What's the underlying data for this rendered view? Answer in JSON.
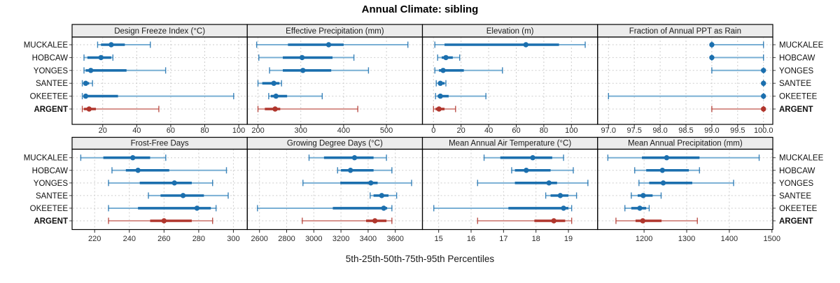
{
  "title": "Annual Climate: sibling",
  "caption": "5th-25th-50th-75th-95th Percentiles",
  "sites": [
    "MUCKALEE",
    "HOBCAW",
    "YONGES",
    "SANTEE",
    "OKEETEE",
    "ARGENT"
  ],
  "highlight_site": "ARGENT",
  "colors": {
    "series_main": "#1b6fae",
    "series_light": "#79afd4",
    "highlight_main": "#b0352c",
    "highlight_light": "#d7948e",
    "header_bg": "#ececec",
    "panel_border": "#000000",
    "grid": "#cdcdcd",
    "tick_text": "#2b2b2b"
  },
  "chart_data": {
    "type": "percentile-dotplot",
    "percentiles": [
      "5th",
      "25th",
      "50th",
      "75th",
      "95th"
    ],
    "grid": "dashed",
    "rows": 2,
    "cols": 4,
    "panels": [
      {
        "title": "Design Freeze Index (°C)",
        "band": 0,
        "range": [
          2,
          105
        ],
        "ticks": [
          20,
          40,
          60,
          80,
          100
        ],
        "tick_labels": [
          "20",
          "40",
          "60",
          "80",
          "100"
        ],
        "series": {
          "MUCKALEE": [
            17,
            19,
            25,
            33,
            48
          ],
          "HOBCAW": [
            9,
            11,
            19,
            25,
            26
          ],
          "YONGES": [
            9,
            10,
            13,
            34,
            57
          ],
          "SANTEE": [
            8,
            9,
            10,
            12,
            14
          ],
          "OKEETEE": [
            8,
            9,
            10,
            29,
            97
          ],
          "ARGENT": [
            8,
            9,
            12,
            16,
            53
          ]
        }
      },
      {
        "title": "Effective Precipitation (mm)",
        "band": 0,
        "range": [
          175,
          584
        ],
        "ticks": [
          200,
          300,
          400,
          500
        ],
        "tick_labels": [
          "200",
          "300",
          "400",
          "500"
        ],
        "series": {
          "MUCKALEE": [
            197,
            270,
            365,
            400,
            550
          ],
          "HOBCAW": [
            202,
            258,
            303,
            374,
            424
          ],
          "YONGES": [
            227,
            258,
            305,
            371,
            458
          ],
          "SANTEE": [
            200,
            210,
            237,
            250,
            255
          ],
          "OKEETEE": [
            225,
            230,
            242,
            268,
            350
          ],
          "ARGENT": [
            200,
            216,
            240,
            252,
            433
          ]
        }
      },
      {
        "title": "Elevation (m)",
        "band": 0,
        "range": [
          -8,
          119
        ],
        "ticks": [
          0,
          20,
          40,
          60,
          80,
          100
        ],
        "tick_labels": [
          "0",
          "20",
          "40",
          "60",
          "80",
          "100"
        ],
        "series": {
          "MUCKALEE": [
            1,
            8,
            67,
            91,
            110
          ],
          "HOBCAW": [
            3,
            6,
            9,
            14,
            19
          ],
          "YONGES": [
            1,
            4,
            7,
            22,
            50
          ],
          "SANTEE": [
            2,
            3.5,
            5,
            8,
            9
          ],
          "OKEETEE": [
            1.5,
            3,
            5,
            11,
            38
          ],
          "ARGENT": [
            0,
            1.5,
            4,
            8,
            16
          ]
        }
      },
      {
        "title": "Fraction of Annual PPT as Rain",
        "band": 0,
        "range": [
          96.79,
          100.18
        ],
        "ticks": [
          97.0,
          97.5,
          98.0,
          98.5,
          99.0,
          99.5,
          100.0
        ],
        "tick_labels": [
          "97.0",
          "97.5",
          "98.0",
          "98.5",
          "99.0",
          "99.5",
          "100.0"
        ],
        "series": {
          "MUCKALEE": [
            99,
            99,
            99,
            99,
            100
          ],
          "HOBCAW": [
            99,
            99,
            99,
            99,
            100
          ],
          "YONGES": [
            99,
            100,
            100,
            100,
            100
          ],
          "SANTEE": [
            100,
            100,
            100,
            100,
            100
          ],
          "OKEETEE": [
            97,
            100,
            100,
            100,
            100
          ],
          "ARGENT": [
            99,
            100,
            100,
            100,
            100
          ]
        }
      },
      {
        "title": "Frost-Free Days",
        "band": 1,
        "range": [
          207,
          308
        ],
        "ticks": [
          220,
          240,
          260,
          280,
          300
        ],
        "tick_labels": [
          "220",
          "240",
          "260",
          "280",
          "300"
        ],
        "series": {
          "MUCKALEE": [
            212,
            225,
            242,
            252,
            261
          ],
          "HOBCAW": [
            230,
            238,
            245,
            263,
            296
          ],
          "YONGES": [
            228,
            246,
            266,
            276,
            288
          ],
          "SANTEE": [
            251,
            258,
            271,
            283,
            297
          ],
          "OKEETEE": [
            228,
            245,
            279,
            287,
            290
          ],
          "ARGENT": [
            228,
            252,
            260,
            276,
            288
          ]
        }
      },
      {
        "title": "Growing Degree Days (°C)",
        "band": 1,
        "range": [
          2510,
          3800
        ],
        "ticks": [
          2600,
          2800,
          3000,
          3200,
          3400,
          3600
        ],
        "tick_labels": [
          "2600",
          "2800",
          "3000",
          "3200",
          "3400",
          "3600"
        ],
        "series": {
          "MUCKALEE": [
            2965,
            3075,
            3300,
            3440,
            3535
          ],
          "HOBCAW": [
            3175,
            3200,
            3270,
            3440,
            3575
          ],
          "YONGES": [
            2920,
            3195,
            3420,
            3470,
            3720
          ],
          "SANTEE": [
            3415,
            3440,
            3500,
            3550,
            3610
          ],
          "OKEETEE": [
            2585,
            3140,
            3515,
            3540,
            3575
          ],
          "ARGENT": [
            2915,
            3385,
            3450,
            3535,
            3575
          ]
        }
      },
      {
        "title": "Mean Annual Air Temperature (°C)",
        "band": 1,
        "range": [
          14.5,
          19.9
        ],
        "ticks": [
          15,
          16,
          17,
          18,
          19
        ],
        "tick_labels": [
          "15",
          "16",
          "17",
          "18",
          "19"
        ],
        "series": {
          "MUCKALEE": [
            16.4,
            16.9,
            17.9,
            18.5,
            18.85
          ],
          "HOBCAW": [
            17.25,
            17.35,
            17.7,
            18.45,
            19.15
          ],
          "YONGES": [
            16.2,
            17.35,
            18.4,
            18.65,
            19.6
          ],
          "SANTEE": [
            18.3,
            18.45,
            18.75,
            19.0,
            19.25
          ],
          "OKEETEE": [
            14.85,
            17.15,
            18.85,
            19.0,
            19.1
          ],
          "ARGENT": [
            16.2,
            17.95,
            18.55,
            18.9,
            19.1
          ]
        }
      },
      {
        "title": "Mean Annual Precipitation (mm)",
        "band": 1,
        "range": [
          1091,
          1502
        ],
        "ticks": [
          1200,
          1300,
          1400,
          1500
        ],
        "tick_labels": [
          "1200",
          "1300",
          "1400",
          "1500"
        ],
        "series": {
          "MUCKALEE": [
            1115,
            1195,
            1253,
            1330,
            1470
          ],
          "HOBCAW": [
            1178,
            1205,
            1243,
            1305,
            1330
          ],
          "YONGES": [
            1188,
            1212,
            1245,
            1313,
            1410
          ],
          "SANTEE": [
            1170,
            1185,
            1198,
            1220,
            1240
          ],
          "OKEETEE": [
            1155,
            1170,
            1190,
            1205,
            1212
          ],
          "ARGENT": [
            1134,
            1180,
            1197,
            1241,
            1325
          ]
        }
      }
    ]
  }
}
